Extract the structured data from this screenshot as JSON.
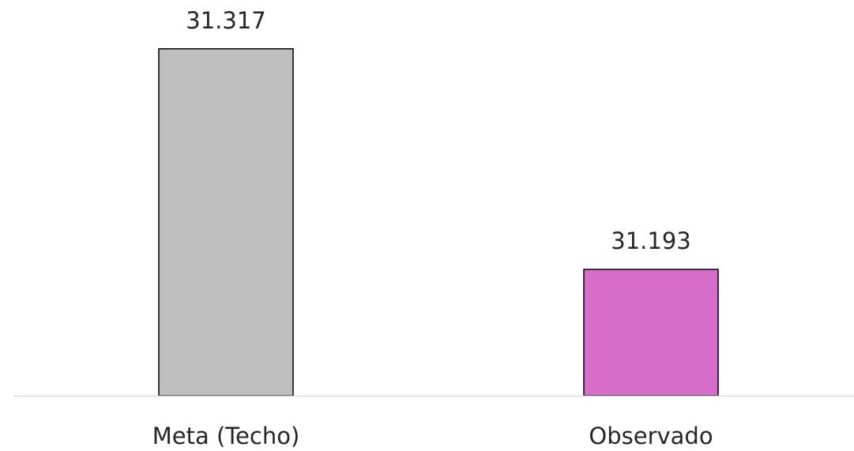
{
  "chart_data": {
    "type": "bar",
    "categories": [
      "Meta (Techo)",
      "Observado"
    ],
    "values": [
      31317,
      31193
    ],
    "value_labels": [
      "31.317",
      "31.193"
    ],
    "colors": [
      "#bfbfbf",
      "#d56dc9"
    ],
    "ylim": [
      31122,
      31340
    ]
  }
}
